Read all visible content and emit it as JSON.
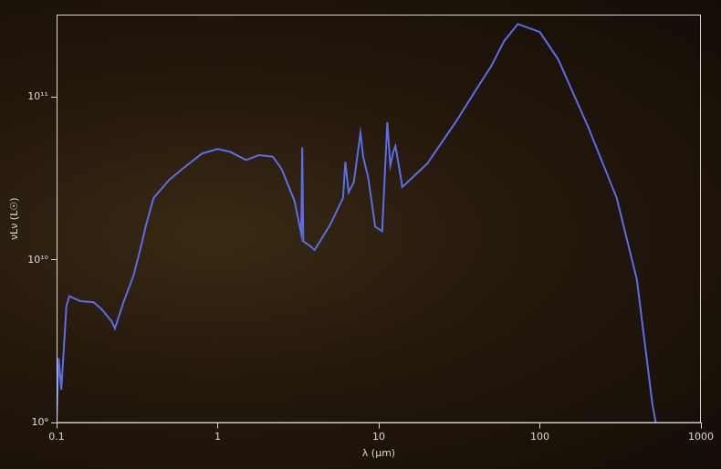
{
  "chart_data": {
    "type": "line",
    "x_label": "λ (μm)",
    "y_label": "νLν (L☉)",
    "log": true,
    "grid": false,
    "color": "#5b6ee8",
    "xlim": [
      0.1,
      1000
    ],
    "ylim": [
      1000000000.0,
      320000000000.0
    ],
    "xticks": [
      0.1,
      1,
      10,
      100,
      1000
    ],
    "yticks": [
      {
        "value": 1000000000.0,
        "label": "10⁹"
      },
      {
        "value": 10000000000.0,
        "label": "10¹⁰"
      },
      {
        "value": 100000000000.0,
        "label": "10¹¹"
      }
    ],
    "x": [
      0.1,
      0.103,
      0.107,
      0.115,
      0.12,
      0.14,
      0.17,
      0.19,
      0.22,
      0.23,
      0.26,
      0.3,
      0.33,
      0.36,
      0.4,
      0.5,
      0.6,
      0.8,
      1.0,
      1.2,
      1.5,
      1.8,
      2.2,
      2.5,
      3.0,
      3.3,
      3.35,
      3.4,
      3.7,
      4.0,
      5.0,
      6.0,
      6.2,
      6.5,
      7.0,
      7.7,
      8.0,
      8.6,
      9.5,
      10.5,
      11.3,
      11.8,
      12.3,
      12.7,
      13.5,
      14,
      20,
      30,
      40,
      50,
      60,
      73,
      100,
      130,
      200,
      300,
      400,
      500,
      525
    ],
    "values": [
      1000000000.0,
      2500000000.0,
      1600000000.0,
      5200000000.0,
      6000000000.0,
      5600000000.0,
      5500000000.0,
      5000000000.0,
      4200000000.0,
      3800000000.0,
      5500000000.0,
      8000000000.0,
      11500000000.0,
      16500000000.0,
      24000000000.0,
      31000000000.0,
      36000000000.0,
      45000000000.0,
      48000000000.0,
      46000000000.0,
      41000000000.0,
      44000000000.0,
      43000000000.0,
      36000000000.0,
      23000000000.0,
      14500000000.0,
      49000000000.0,
      13000000000.0,
      12300000000.0,
      11500000000.0,
      16500000000.0,
      24000000000.0,
      40000000000.0,
      26000000000.0,
      30000000000.0,
      60000000000.0,
      43000000000.0,
      32000000000.0,
      16000000000.0,
      15000000000.0,
      70000000000.0,
      38000000000.0,
      46000000000.0,
      50000000000.0,
      35000000000.0,
      28000000000.0,
      39000000000.0,
      70000000000.0,
      110000000000.0,
      155000000000.0,
      220000000000.0,
      280000000000.0,
      250000000000.0,
      170000000000.0,
      65000000000.0,
      24000000000.0,
      7600000000.0,
      1300000000.0,
      1000000000.0
    ]
  }
}
